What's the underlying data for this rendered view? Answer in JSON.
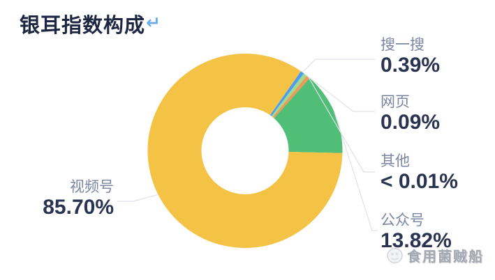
{
  "page": {
    "title": "银耳指数构成",
    "return_mark": "↵"
  },
  "chart_data": {
    "type": "pie",
    "title": "银耳指数构成",
    "donut": true,
    "unit": "%",
    "legend_position": "none",
    "labels_style": "callout-with-leader-lines",
    "series": [
      {
        "name": "视频号",
        "value": 85.7,
        "display": "85.70%",
        "color": "#F4C245"
      },
      {
        "name": "公众号",
        "value": 13.82,
        "display": "13.82%",
        "color": "#50BE76"
      },
      {
        "name": "搜一搜",
        "value": 0.39,
        "display": "0.39%",
        "color": "#4A9DF1"
      },
      {
        "name": "网页",
        "value": 0.09,
        "display": "0.09%",
        "color": "#A3D98E"
      },
      {
        "name": "其他",
        "value": 0.005,
        "display": "< 0.01%",
        "color": "#EB9A58"
      }
    ],
    "display": {
      "order_clockwise": [
        "搜一搜",
        "网页",
        "其他",
        "公众号",
        "视频号"
      ],
      "start_angle_deg": 55,
      "min_slice_angle_deg": 2.2
    },
    "leader_line_color": "#e0e1ea"
  },
  "watermark": {
    "text": "食用菌贼船"
  }
}
